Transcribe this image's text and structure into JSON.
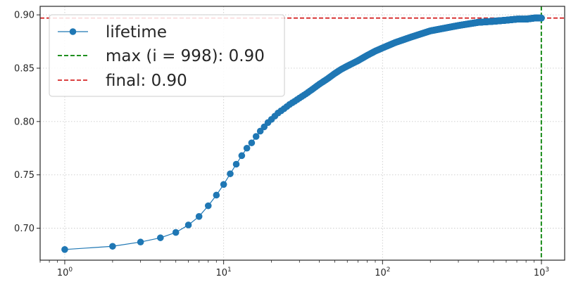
{
  "chart_data": {
    "type": "line",
    "xscale": "log",
    "xlim": [
      0.7,
      1400
    ],
    "ylim": [
      0.67,
      0.908
    ],
    "grid": true,
    "legend_placement": "top-left",
    "x_ticks": [
      {
        "value": 1,
        "base": "10",
        "exp": "0"
      },
      {
        "value": 10,
        "base": "10",
        "exp": "1"
      },
      {
        "value": 100,
        "base": "10",
        "exp": "2"
      },
      {
        "value": 1000,
        "base": "10",
        "exp": "3"
      }
    ],
    "y_ticks": [
      {
        "value": 0.7,
        "label": "0.70"
      },
      {
        "value": 0.75,
        "label": "0.75"
      },
      {
        "value": 0.8,
        "label": "0.80"
      },
      {
        "value": 0.85,
        "label": "0.85"
      },
      {
        "value": 0.9,
        "label": "0.90"
      }
    ],
    "series": [
      {
        "name": "lifetime",
        "color": "#1f77b4",
        "marker": "circle",
        "x": [
          1,
          2,
          3,
          4,
          5,
          6,
          7,
          8,
          9,
          10,
          11,
          12,
          13,
          14,
          15,
          16,
          17,
          18,
          19,
          20,
          22,
          24,
          26,
          28,
          30,
          33,
          36,
          40,
          45,
          50,
          55,
          60,
          70,
          80,
          90,
          100,
          120,
          150,
          200,
          300,
          400,
          500,
          600,
          700,
          800,
          900,
          1000
        ],
        "y": [
          0.68,
          0.683,
          0.687,
          0.691,
          0.696,
          0.703,
          0.711,
          0.721,
          0.731,
          0.741,
          0.751,
          0.76,
          0.768,
          0.775,
          0.78,
          0.786,
          0.791,
          0.795,
          0.799,
          0.802,
          0.808,
          0.812,
          0.816,
          0.819,
          0.822,
          0.826,
          0.83,
          0.835,
          0.84,
          0.845,
          0.849,
          0.852,
          0.857,
          0.862,
          0.866,
          0.869,
          0.874,
          0.879,
          0.885,
          0.89,
          0.893,
          0.894,
          0.895,
          0.896,
          0.896,
          0.897,
          0.897
        ]
      }
    ],
    "reference_lines": [
      {
        "name": "max (i = 998): 0.90",
        "orientation": "vertical",
        "x": 998,
        "color": "#008000",
        "style": "dashed"
      },
      {
        "name": "final: 0.90",
        "orientation": "horizontal",
        "y": 0.897,
        "color": "#d62728",
        "style": "dashed"
      }
    ]
  }
}
